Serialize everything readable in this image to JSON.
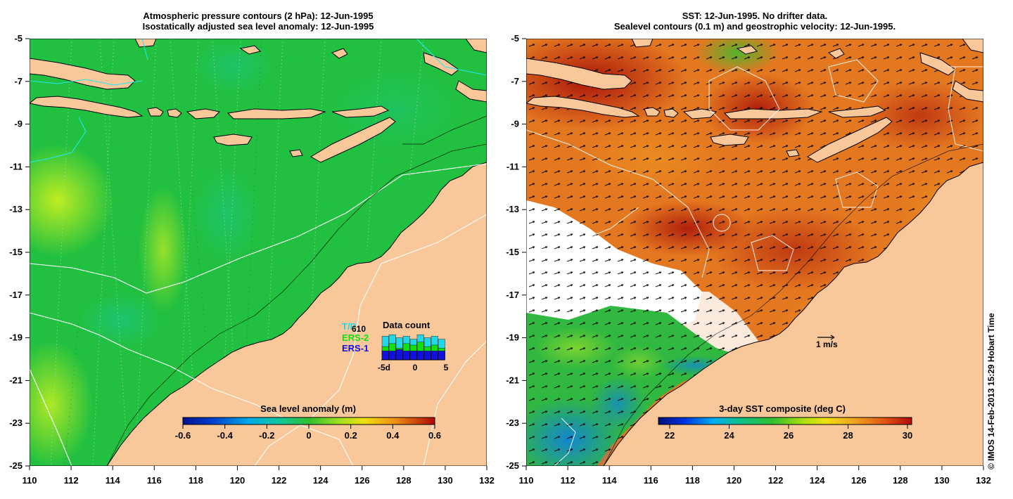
{
  "left_panel": {
    "title_line1": "Atmospheric pressure contours (2 hPa): 12-Jun-1995",
    "title_line2": "Isostatically adjusted sea level anomaly: 12-Jun-1995",
    "colorbar": {
      "label": "Sea level anomaly (m)",
      "ticks": [
        "-0.6",
        "-0.4",
        "-0.2",
        "0",
        "0.2",
        "0.4",
        "0.6"
      ]
    },
    "data_count": {
      "title": "Data count",
      "count": "610",
      "legend": [
        {
          "name": "T/P",
          "color": "#20d8e8"
        },
        {
          "name": "ERS-2",
          "color": "#10e010"
        },
        {
          "name": "ERS-1",
          "color": "#1010e0"
        }
      ],
      "axis_labels": [
        "-5d",
        "0",
        "5"
      ],
      "bars": [
        {
          "ers1": 0.3,
          "ers2": 0.45,
          "tp": 0.8
        },
        {
          "ers1": 0.3,
          "ers2": 0.55,
          "tp": 0.85
        },
        {
          "ers1": 0.35,
          "ers2": 0.4,
          "tp": 0.75
        },
        {
          "ers1": 0.3,
          "ers2": 0.55,
          "tp": 0.8
        },
        {
          "ers1": 0.3,
          "ers2": 0.5,
          "tp": 0.7
        },
        {
          "ers1": 0.3,
          "ers2": 0.6,
          "tp": 0.85
        },
        {
          "ers1": 0.3,
          "ers2": 0.45,
          "tp": 0.75
        },
        {
          "ers1": 0.3,
          "ers2": 0.5,
          "tp": 0.8
        },
        {
          "ers1": 0.3,
          "ers2": 0.4,
          "tp": 0.7
        }
      ]
    }
  },
  "right_panel": {
    "title_line1": "SST: 12-Jun-1995. No drifter data.",
    "title_line2": "Sealevel contours (0.1 m) and geostrophic velocity: 12-Jun-1995.",
    "colorbar": {
      "label": "3-day SST composite (deg C)",
      "ticks": [
        "22",
        "24",
        "26",
        "28",
        "30"
      ]
    },
    "velocity_scale_label": "1 m/s"
  },
  "axes": {
    "y_ticks": [
      "-5",
      "-7",
      "-9",
      "-11",
      "-13",
      "-15",
      "-17",
      "-19",
      "-21",
      "-23",
      "-25"
    ],
    "x_ticks": [
      "110",
      "112",
      "114",
      "116",
      "118",
      "120",
      "122",
      "124",
      "126",
      "128",
      "130",
      "132"
    ]
  },
  "credit": "© IMOS 14-Feb-2013 15:29 Hobart Time",
  "colors": {
    "land": "#f9c89a",
    "ocean_sla": "#22c040",
    "sst_warm": "#e06818",
    "sst_hot": "#b01808"
  }
}
